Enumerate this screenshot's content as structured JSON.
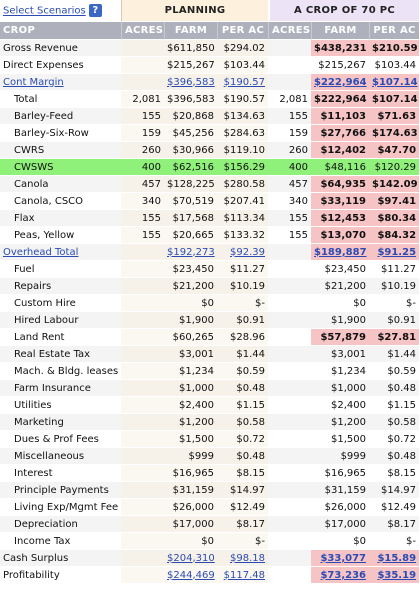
{
  "header": {
    "select_scenarios_label": "Select Scenarios",
    "help_icon": "?",
    "planning_label": "PLANNING",
    "crop_label": "A CROP OF 70 PC"
  },
  "columns": {
    "crop": "CROP",
    "acres1": "ACRES",
    "farm1": "FARM",
    "perac1": "PER AC",
    "acres2": "ACRES",
    "farm2": "FARM",
    "perac2": "PER AC"
  },
  "rows": [
    {
      "label": "Gross Revenue",
      "acres1": "",
      "farm1": "$611,850",
      "perac1": "$294.02",
      "acres2": "",
      "farm2": "$438,231",
      "perac2": "$210.59"
    },
    {
      "label": "Direct Expenses",
      "acres1": "",
      "farm1": "$215,267",
      "perac1": "$103.44",
      "acres2": "",
      "farm2": "$215,267",
      "perac2": "$103.44"
    },
    {
      "label": "Cont Margin",
      "acres1": "",
      "farm1": "$396,583",
      "perac1": "$190.57",
      "acres2": "",
      "farm2": "$222,964",
      "perac2": "$107.14"
    },
    {
      "label": "Total",
      "acres1": "2,081",
      "farm1": "$396,583",
      "perac1": "$190.57",
      "acres2": "2,081",
      "farm2": "$222,964",
      "perac2": "$107.14"
    },
    {
      "label": "Barley-Feed",
      "acres1": "155",
      "farm1": "$20,868",
      "perac1": "$134.63",
      "acres2": "155",
      "farm2": "$11,103",
      "perac2": "$71.63"
    },
    {
      "label": "Barley-Six-Row",
      "acres1": "159",
      "farm1": "$45,256",
      "perac1": "$284.63",
      "acres2": "159",
      "farm2": "$27,766",
      "perac2": "$174.63"
    },
    {
      "label": "CWRS",
      "acres1": "260",
      "farm1": "$30,966",
      "perac1": "$119.10",
      "acres2": "260",
      "farm2": "$12,402",
      "perac2": "$47.70"
    },
    {
      "label": "CWSWS",
      "acres1": "400",
      "farm1": "$62,516",
      "perac1": "$156.29",
      "acres2": "400",
      "farm2": "$48,116",
      "perac2": "$120.29"
    },
    {
      "label": "Canola",
      "acres1": "457",
      "farm1": "$128,225",
      "perac1": "$280.58",
      "acres2": "457",
      "farm2": "$64,935",
      "perac2": "$142.09"
    },
    {
      "label": "Canola, CSCO",
      "acres1": "340",
      "farm1": "$70,519",
      "perac1": "$207.41",
      "acres2": "340",
      "farm2": "$33,119",
      "perac2": "$97.41"
    },
    {
      "label": "Flax",
      "acres1": "155",
      "farm1": "$17,568",
      "perac1": "$113.34",
      "acres2": "155",
      "farm2": "$12,453",
      "perac2": "$80.34"
    },
    {
      "label": "Peas, Yellow",
      "acres1": "155",
      "farm1": "$20,665",
      "perac1": "$133.32",
      "acres2": "155",
      "farm2": "$13,070",
      "perac2": "$84.32"
    },
    {
      "label": "Overhead Total",
      "acres1": "",
      "farm1": "$192,273",
      "perac1": "$92.39",
      "acres2": "",
      "farm2": "$189,887",
      "perac2": "$91.25"
    },
    {
      "label": "Fuel",
      "acres1": "",
      "farm1": "$23,450",
      "perac1": "$11.27",
      "acres2": "",
      "farm2": "$23,450",
      "perac2": "$11.27"
    },
    {
      "label": "Repairs",
      "acres1": "",
      "farm1": "$21,200",
      "perac1": "$10.19",
      "acres2": "",
      "farm2": "$21,200",
      "perac2": "$10.19"
    },
    {
      "label": "Custom Hire",
      "acres1": "",
      "farm1": "$0",
      "perac1": "$-",
      "acres2": "",
      "farm2": "$0",
      "perac2": "$-"
    },
    {
      "label": "Hired Labour",
      "acres1": "",
      "farm1": "$1,900",
      "perac1": "$0.91",
      "acres2": "",
      "farm2": "$1,900",
      "perac2": "$0.91"
    },
    {
      "label": "Land Rent",
      "acres1": "",
      "farm1": "$60,265",
      "perac1": "$28.96",
      "acres2": "",
      "farm2": "$57,879",
      "perac2": "$27.81"
    },
    {
      "label": "Real Estate Tax",
      "acres1": "",
      "farm1": "$3,001",
      "perac1": "$1.44",
      "acres2": "",
      "farm2": "$3,001",
      "perac2": "$1.44"
    },
    {
      "label": "Mach. & Bldg. leases",
      "acres1": "",
      "farm1": "$1,234",
      "perac1": "$0.59",
      "acres2": "",
      "farm2": "$1,234",
      "perac2": "$0.59"
    },
    {
      "label": "Farm Insurance",
      "acres1": "",
      "farm1": "$1,000",
      "perac1": "$0.48",
      "acres2": "",
      "farm2": "$1,000",
      "perac2": "$0.48"
    },
    {
      "label": "Utilities",
      "acres1": "",
      "farm1": "$2,400",
      "perac1": "$1.15",
      "acres2": "",
      "farm2": "$2,400",
      "perac2": "$1.15"
    },
    {
      "label": "Marketing",
      "acres1": "",
      "farm1": "$1,200",
      "perac1": "$0.58",
      "acres2": "",
      "farm2": "$1,200",
      "perac2": "$0.58"
    },
    {
      "label": "Dues & Prof Fees",
      "acres1": "",
      "farm1": "$1,500",
      "perac1": "$0.72",
      "acres2": "",
      "farm2": "$1,500",
      "perac2": "$0.72"
    },
    {
      "label": "Miscellaneous",
      "acres1": "",
      "farm1": "$999",
      "perac1": "$0.48",
      "acres2": "",
      "farm2": "$999",
      "perac2": "$0.48"
    },
    {
      "label": "Interest",
      "acres1": "",
      "farm1": "$16,965",
      "perac1": "$8.15",
      "acres2": "",
      "farm2": "$16,965",
      "perac2": "$8.15"
    },
    {
      "label": "Principle Payments",
      "acres1": "",
      "farm1": "$31,159",
      "perac1": "$14.97",
      "acres2": "",
      "farm2": "$31,159",
      "perac2": "$14.97"
    },
    {
      "label": "Living Exp/Mgmt Fee",
      "acres1": "",
      "farm1": "$26,000",
      "perac1": "$12.49",
      "acres2": "",
      "farm2": "$26,000",
      "perac2": "$12.49"
    },
    {
      "label": "Depreciation",
      "acres1": "",
      "farm1": "$17,000",
      "perac1": "$8.17",
      "acres2": "",
      "farm2": "$17,000",
      "perac2": "$8.17"
    },
    {
      "label": "Income Tax",
      "acres1": "",
      "farm1": "$0",
      "perac1": "$-",
      "acres2": "",
      "farm2": "$0",
      "perac2": "$-"
    },
    {
      "label": "Cash Surplus",
      "acres1": "",
      "farm1": "$204,310",
      "perac1": "$98.18",
      "acres2": "",
      "farm2": "$33,077",
      "perac2": "$15.89"
    },
    {
      "label": "Profitability",
      "acres1": "",
      "farm1": "$244,469",
      "perac1": "$117.48",
      "acres2": "",
      "farm2": "$73,236",
      "perac2": "$35.19"
    }
  ],
  "colors": {
    "planning_header_bg": "#fdf0dc",
    "crop_header_bg": "#ece3f7",
    "column_header_bg": "#aeb1bc",
    "highlight_changed": "#f7c4c6",
    "selected_row": "#8ff07a",
    "link": "#2b4bb3"
  }
}
